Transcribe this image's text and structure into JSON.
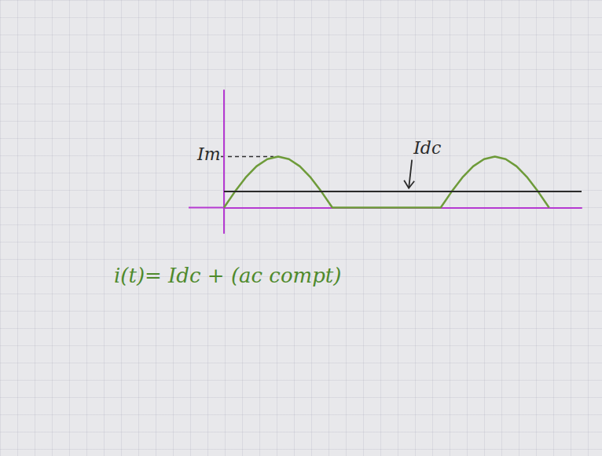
{
  "chart_data": {
    "type": "line",
    "x": [
      0,
      0.1,
      0.2,
      0.3,
      0.4,
      0.5,
      0.6,
      0.7,
      0.8,
      0.9,
      1.0,
      1.1,
      1.2,
      1.3,
      1.4,
      1.5,
      1.6,
      1.7,
      1.8,
      1.9,
      2.0,
      2.1,
      2.2,
      2.3,
      2.4,
      2.5,
      2.6,
      2.7,
      2.8,
      2.9,
      3.0
    ],
    "values": [
      0,
      0.31,
      0.59,
      0.81,
      0.95,
      1,
      0.95,
      0.81,
      0.59,
      0.31,
      0,
      0,
      0,
      0,
      0,
      0,
      0,
      0,
      0,
      0,
      0,
      0.31,
      0.59,
      0.81,
      0.95,
      1,
      0.95,
      0.81,
      0.59,
      0.31,
      0
    ],
    "color": "#6e9b3a",
    "xlim": [
      0,
      3.3
    ],
    "ylim": [
      -0.5,
      2.3
    ],
    "tick_labels": false,
    "grid": false,
    "annotations": {
      "peak_label": "Im",
      "peak_value": 1,
      "dc_label": "Idc",
      "dc_value": 0.32,
      "equation": "i(t)= Idc + (ac compt)"
    }
  }
}
